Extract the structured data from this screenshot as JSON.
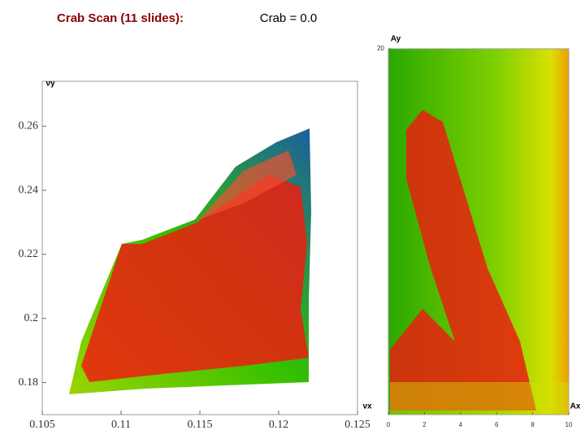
{
  "header": {
    "title": "Crab Scan (11 slides):",
    "subtitle": "Crab = 0.0"
  },
  "chart_data": [
    {
      "type": "scatter",
      "x_label": "νx",
      "y_label": "νy",
      "xlim": [
        0.105,
        0.125
      ],
      "xticks": [
        0.105,
        0.11,
        0.115,
        0.12,
        0.125
      ],
      "ylim": [
        0.17,
        0.274
      ],
      "yticks": [
        0.18,
        0.2,
        0.22,
        0.24,
        0.26
      ]
    },
    {
      "type": "heatmap",
      "x_label": "Ax",
      "y_label": "Ay",
      "xlim": [
        0,
        10
      ],
      "xticks": [
        0,
        2,
        4,
        6,
        8,
        10
      ],
      "ylim": [
        0,
        20
      ],
      "yticks": [
        20
      ]
    }
  ]
}
